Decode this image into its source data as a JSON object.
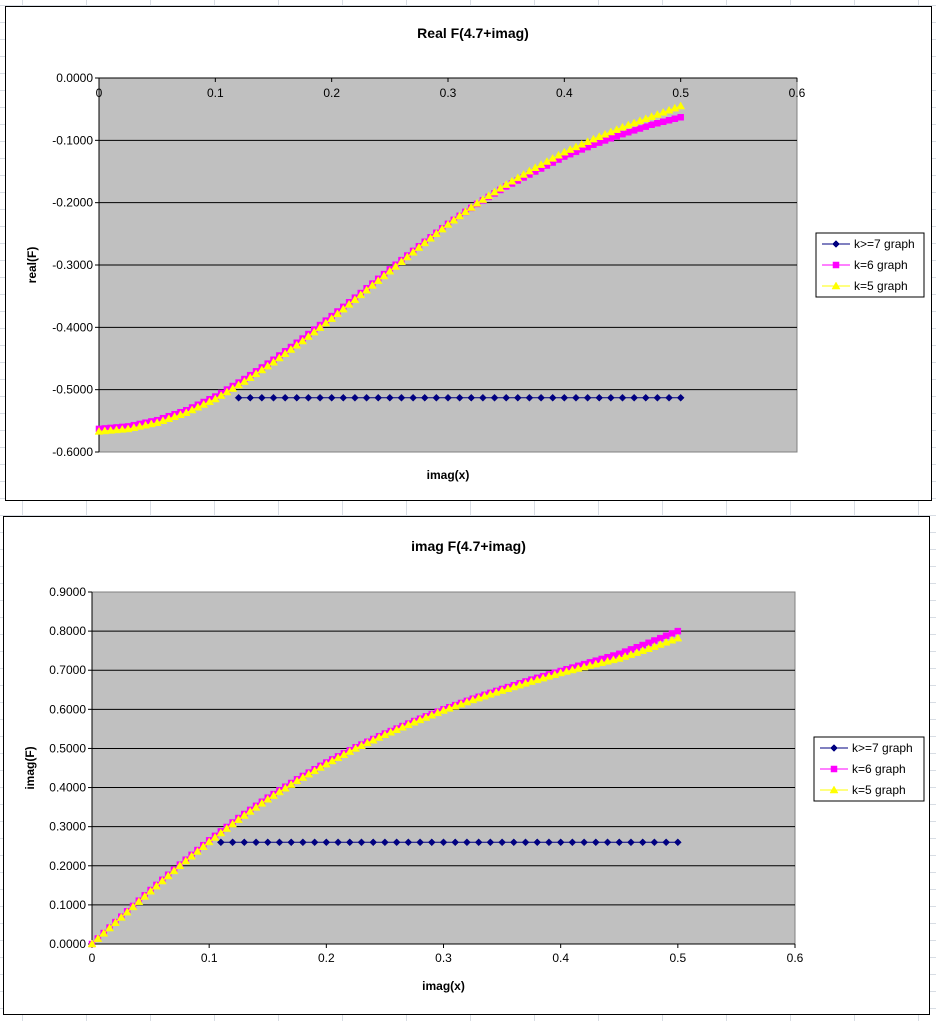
{
  "chart_data": [
    {
      "type": "line",
      "title": "Real F(4.7+imag)",
      "xlabel": "imag(x)",
      "ylabel": "real(F)",
      "xlim": [
        0,
        0.6
      ],
      "ylim": [
        -0.6,
        0.0
      ],
      "x_ticks": [
        "0",
        "0.1",
        "0.2",
        "0.3",
        "0.4",
        "0.5",
        "0.6"
      ],
      "y_ticks": [
        "0.0000",
        "-0.1000",
        "-0.2000",
        "-0.3000",
        "-0.4000",
        "-0.5000",
        "-0.6000"
      ],
      "x_axis_position": "top",
      "plot_background": "#c0c0c0",
      "grid": "horizontal",
      "legend_position": "right",
      "series": [
        {
          "name": "k>=7 graph",
          "color": "#000080",
          "marker": "diamond",
          "x": [
            0.12,
            0.13,
            0.14,
            0.15,
            0.16,
            0.17,
            0.18,
            0.19,
            0.2,
            0.21,
            0.22,
            0.23,
            0.24,
            0.25,
            0.26,
            0.27,
            0.28,
            0.29,
            0.3,
            0.31,
            0.32,
            0.33,
            0.34,
            0.35,
            0.36,
            0.37,
            0.38,
            0.39,
            0.4,
            0.41,
            0.42,
            0.43,
            0.44,
            0.45,
            0.46,
            0.47,
            0.48,
            0.49,
            0.5
          ],
          "y": [
            -0.513,
            -0.513,
            -0.513,
            -0.513,
            -0.513,
            -0.513,
            -0.513,
            -0.513,
            -0.513,
            -0.513,
            -0.513,
            -0.513,
            -0.513,
            -0.513,
            -0.513,
            -0.513,
            -0.513,
            -0.513,
            -0.513,
            -0.513,
            -0.513,
            -0.513,
            -0.513,
            -0.513,
            -0.513,
            -0.513,
            -0.513,
            -0.513,
            -0.513,
            -0.513,
            -0.513,
            -0.513,
            -0.513,
            -0.513,
            -0.513,
            -0.513,
            -0.513,
            -0.513,
            -0.513
          ]
        },
        {
          "name": "k=6 graph",
          "color": "#ff00ff",
          "marker": "square",
          "x": [
            0,
            0.025,
            0.05,
            0.075,
            0.1,
            0.125,
            0.15,
            0.175,
            0.2,
            0.225,
            0.25,
            0.275,
            0.3,
            0.325,
            0.35,
            0.375,
            0.4,
            0.425,
            0.45,
            0.475,
            0.5
          ],
          "y": [
            -0.563,
            -0.559,
            -0.549,
            -0.533,
            -0.511,
            -0.483,
            -0.452,
            -0.418,
            -0.382,
            -0.345,
            -0.307,
            -0.27,
            -0.234,
            -0.202,
            -0.174,
            -0.15,
            -0.126,
            -0.107,
            -0.09,
            -0.075,
            -0.063
          ]
        },
        {
          "name": "k=5 graph",
          "color": "#ffff00",
          "marker": "triangle",
          "x": [
            0,
            0.025,
            0.05,
            0.075,
            0.1,
            0.125,
            0.15,
            0.175,
            0.2,
            0.225,
            0.25,
            0.275,
            0.3,
            0.325,
            0.35,
            0.375,
            0.4,
            0.425,
            0.45,
            0.475,
            0.5
          ],
          "y": [
            -0.567,
            -0.563,
            -0.553,
            -0.537,
            -0.515,
            -0.487,
            -0.456,
            -0.422,
            -0.386,
            -0.348,
            -0.31,
            -0.272,
            -0.235,
            -0.201,
            -0.171,
            -0.144,
            -0.119,
            -0.098,
            -0.079,
            -0.062,
            -0.045
          ]
        }
      ]
    },
    {
      "type": "line",
      "title": "imag F(4.7+imag)",
      "xlabel": "imag(x)",
      "ylabel": "imag(F)",
      "xlim": [
        0,
        0.6
      ],
      "ylim": [
        0,
        0.9
      ],
      "x_ticks": [
        "0",
        "0.1",
        "0.2",
        "0.3",
        "0.4",
        "0.5",
        "0.6"
      ],
      "y_ticks": [
        "0.0000",
        "0.1000",
        "0.2000",
        "0.3000",
        "0.4000",
        "0.5000",
        "0.6000",
        "0.7000",
        "0.8000",
        "0.9000"
      ],
      "x_axis_position": "bottom",
      "plot_background": "#c0c0c0",
      "grid": "horizontal",
      "legend_position": "right",
      "series": [
        {
          "name": "k>=7 graph",
          "color": "#000080",
          "marker": "diamond",
          "x": [
            0.11,
            0.12,
            0.13,
            0.14,
            0.15,
            0.16,
            0.17,
            0.18,
            0.19,
            0.2,
            0.21,
            0.22,
            0.23,
            0.24,
            0.25,
            0.26,
            0.27,
            0.28,
            0.29,
            0.3,
            0.31,
            0.32,
            0.33,
            0.34,
            0.35,
            0.36,
            0.37,
            0.38,
            0.39,
            0.4,
            0.41,
            0.42,
            0.43,
            0.44,
            0.45,
            0.46,
            0.47,
            0.48,
            0.49,
            0.5
          ],
          "y": [
            0.26,
            0.26,
            0.26,
            0.26,
            0.26,
            0.26,
            0.26,
            0.26,
            0.26,
            0.26,
            0.26,
            0.26,
            0.26,
            0.26,
            0.26,
            0.26,
            0.26,
            0.26,
            0.26,
            0.26,
            0.26,
            0.26,
            0.26,
            0.26,
            0.26,
            0.26,
            0.26,
            0.26,
            0.26,
            0.26,
            0.26,
            0.26,
            0.26,
            0.26,
            0.26,
            0.26,
            0.26,
            0.26,
            0.26,
            0.26
          ]
        },
        {
          "name": "k=6 graph",
          "color": "#ff00ff",
          "marker": "square",
          "x": [
            0,
            0.025,
            0.05,
            0.075,
            0.1,
            0.125,
            0.15,
            0.175,
            0.2,
            0.225,
            0.25,
            0.275,
            0.3,
            0.325,
            0.35,
            0.375,
            0.4,
            0.425,
            0.45,
            0.475,
            0.5
          ],
          "y": [
            0.0,
            0.07,
            0.138,
            0.203,
            0.265,
            0.322,
            0.374,
            0.421,
            0.464,
            0.503,
            0.538,
            0.57,
            0.6,
            0.627,
            0.652,
            0.676,
            0.698,
            0.72,
            0.742,
            0.77,
            0.8
          ]
        },
        {
          "name": "k=5 graph",
          "color": "#ffff00",
          "marker": "triangle",
          "x": [
            0,
            0.025,
            0.05,
            0.075,
            0.1,
            0.125,
            0.15,
            0.175,
            0.2,
            0.225,
            0.25,
            0.275,
            0.3,
            0.325,
            0.35,
            0.375,
            0.4,
            0.425,
            0.45,
            0.475,
            0.5
          ],
          "y": [
            0.0,
            0.068,
            0.135,
            0.2,
            0.261,
            0.318,
            0.37,
            0.417,
            0.46,
            0.5,
            0.535,
            0.567,
            0.597,
            0.624,
            0.648,
            0.671,
            0.693,
            0.712,
            0.73,
            0.755,
            0.782
          ]
        }
      ]
    }
  ]
}
